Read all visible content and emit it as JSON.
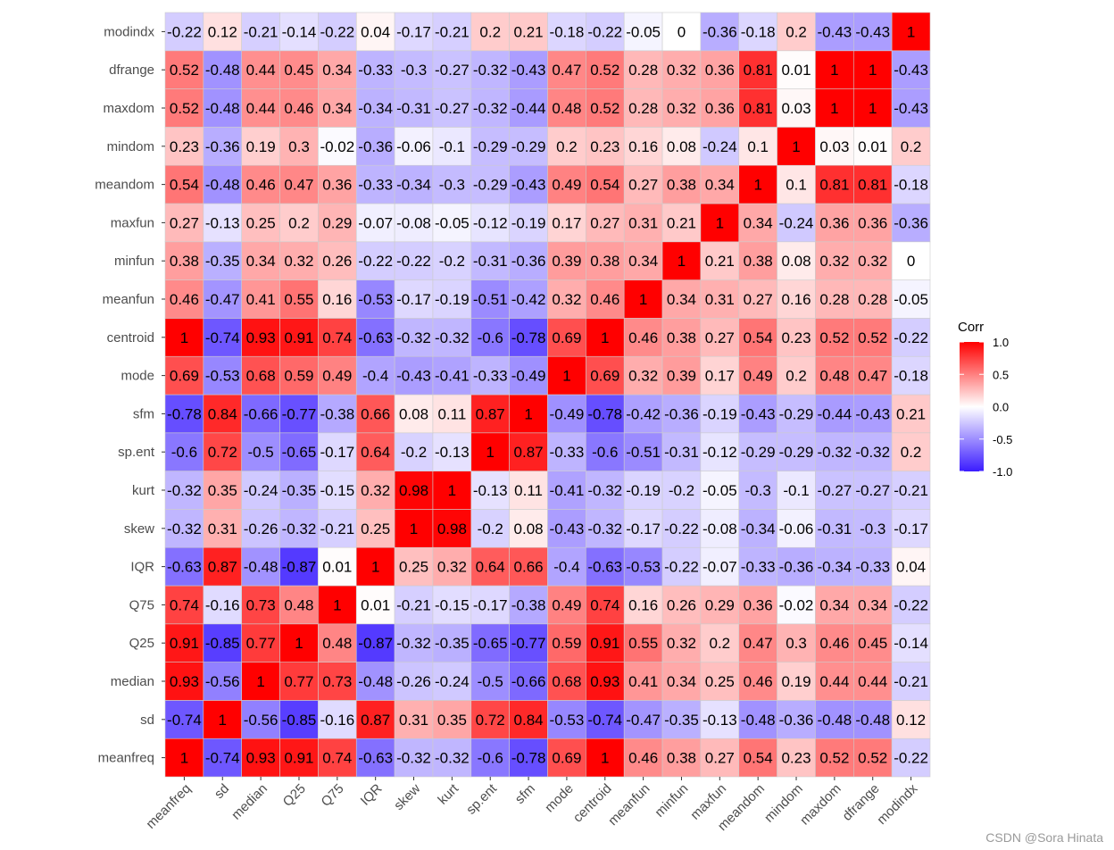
{
  "chart_data": {
    "type": "heatmap",
    "title": "",
    "xlabel": "",
    "ylabel": "",
    "variables": [
      "meanfreq",
      "sd",
      "median",
      "Q25",
      "Q75",
      "IQR",
      "skew",
      "kurt",
      "sp.ent",
      "sfm",
      "mode",
      "centroid",
      "meanfun",
      "minfun",
      "maxfun",
      "meandom",
      "mindom",
      "maxdom",
      "dfrange",
      "modindx"
    ],
    "matrix": [
      [
        1,
        -0.74,
        0.93,
        0.91,
        0.74,
        -0.63,
        -0.32,
        -0.32,
        -0.6,
        -0.78,
        0.69,
        1,
        0.46,
        0.38,
        0.27,
        0.54,
        0.23,
        0.52,
        0.52,
        -0.22
      ],
      [
        -0.74,
        1,
        -0.56,
        -0.85,
        -0.16,
        0.87,
        0.31,
        0.35,
        0.72,
        0.84,
        -0.53,
        -0.74,
        -0.47,
        -0.35,
        -0.13,
        -0.48,
        -0.36,
        -0.48,
        -0.48,
        0.12
      ],
      [
        0.93,
        -0.56,
        1,
        0.77,
        0.73,
        -0.48,
        -0.26,
        -0.24,
        -0.5,
        -0.66,
        0.68,
        0.93,
        0.41,
        0.34,
        0.25,
        0.46,
        0.19,
        0.44,
        0.44,
        -0.21
      ],
      [
        0.91,
        -0.85,
        0.77,
        1,
        0.48,
        -0.87,
        -0.32,
        -0.35,
        -0.65,
        -0.77,
        0.59,
        0.91,
        0.55,
        0.32,
        0.2,
        0.47,
        0.3,
        0.46,
        0.45,
        -0.14
      ],
      [
        0.74,
        -0.16,
        0.73,
        0.48,
        1,
        0.01,
        -0.21,
        -0.15,
        -0.17,
        -0.38,
        0.49,
        0.74,
        0.16,
        0.26,
        0.29,
        0.36,
        -0.02,
        0.34,
        0.34,
        -0.22
      ],
      [
        -0.63,
        0.87,
        -0.48,
        -0.87,
        0.01,
        1,
        0.25,
        0.32,
        0.64,
        0.66,
        -0.4,
        -0.63,
        -0.53,
        -0.22,
        -0.07,
        -0.33,
        -0.36,
        -0.34,
        -0.33,
        0.04
      ],
      [
        -0.32,
        0.31,
        -0.26,
        -0.32,
        -0.21,
        0.25,
        1,
        0.98,
        -0.2,
        0.08,
        -0.43,
        -0.32,
        -0.17,
        -0.22,
        -0.08,
        -0.34,
        -0.06,
        -0.31,
        -0.3,
        -0.17
      ],
      [
        -0.32,
        0.35,
        -0.24,
        -0.35,
        -0.15,
        0.32,
        0.98,
        1,
        -0.13,
        0.11,
        -0.41,
        -0.32,
        -0.19,
        -0.2,
        -0.05,
        -0.3,
        -0.1,
        -0.27,
        -0.27,
        -0.21
      ],
      [
        -0.6,
        0.72,
        -0.5,
        -0.65,
        -0.17,
        0.64,
        -0.2,
        -0.13,
        1,
        0.87,
        -0.33,
        -0.6,
        -0.51,
        -0.31,
        -0.12,
        -0.29,
        -0.29,
        -0.32,
        -0.32,
        0.2
      ],
      [
        -0.78,
        0.84,
        -0.66,
        -0.77,
        -0.38,
        0.66,
        0.08,
        0.11,
        0.87,
        1,
        -0.49,
        -0.78,
        -0.42,
        -0.36,
        -0.19,
        -0.43,
        -0.29,
        -0.44,
        -0.43,
        0.21
      ],
      [
        0.69,
        -0.53,
        0.68,
        0.59,
        0.49,
        -0.4,
        -0.43,
        -0.41,
        -0.33,
        -0.49,
        1,
        0.69,
        0.32,
        0.39,
        0.17,
        0.49,
        0.2,
        0.48,
        0.47,
        -0.18
      ],
      [
        1,
        -0.74,
        0.93,
        0.91,
        0.74,
        -0.63,
        -0.32,
        -0.32,
        -0.6,
        -0.78,
        0.69,
        1,
        0.46,
        0.38,
        0.27,
        0.54,
        0.23,
        0.52,
        0.52,
        -0.22
      ],
      [
        0.46,
        -0.47,
        0.41,
        0.55,
        0.16,
        -0.53,
        -0.17,
        -0.19,
        -0.51,
        -0.42,
        0.32,
        0.46,
        1,
        0.34,
        0.31,
        0.27,
        0.16,
        0.28,
        0.28,
        -0.05
      ],
      [
        0.38,
        -0.35,
        0.34,
        0.32,
        0.26,
        -0.22,
        -0.22,
        -0.2,
        -0.31,
        -0.36,
        0.39,
        0.38,
        0.34,
        1,
        0.21,
        0.38,
        0.08,
        0.32,
        0.32,
        0
      ],
      [
        0.27,
        -0.13,
        0.25,
        0.2,
        0.29,
        -0.07,
        -0.08,
        -0.05,
        -0.12,
        -0.19,
        0.17,
        0.27,
        0.31,
        0.21,
        1,
        0.34,
        -0.24,
        0.36,
        0.36,
        -0.36
      ],
      [
        0.54,
        -0.48,
        0.46,
        0.47,
        0.36,
        -0.33,
        -0.34,
        -0.3,
        -0.29,
        -0.43,
        0.49,
        0.54,
        0.27,
        0.38,
        0.34,
        1,
        0.1,
        0.81,
        0.81,
        -0.18
      ],
      [
        0.23,
        -0.36,
        0.19,
        0.3,
        -0.02,
        -0.36,
        -0.06,
        -0.1,
        -0.29,
        -0.29,
        0.2,
        0.23,
        0.16,
        0.08,
        -0.24,
        0.1,
        1,
        0.03,
        0.01,
        0.2
      ],
      [
        0.52,
        -0.48,
        0.44,
        0.46,
        0.34,
        -0.34,
        -0.31,
        -0.27,
        -0.32,
        -0.44,
        0.48,
        0.52,
        0.28,
        0.32,
        0.36,
        0.81,
        0.03,
        1,
        1,
        -0.43
      ],
      [
        0.52,
        -0.48,
        0.44,
        0.45,
        0.34,
        -0.33,
        -0.3,
        -0.27,
        -0.32,
        -0.43,
        0.47,
        0.52,
        0.28,
        0.32,
        0.36,
        0.81,
        0.01,
        1,
        1,
        -0.43
      ],
      [
        -0.22,
        0.12,
        -0.21,
        -0.14,
        -0.22,
        0.04,
        -0.17,
        -0.21,
        0.2,
        0.21,
        -0.18,
        -0.22,
        -0.05,
        0,
        -0.36,
        -0.18,
        0.2,
        -0.43,
        -0.43,
        1
      ]
    ],
    "legend": {
      "title": "Corr",
      "ticks": [
        1.0,
        0.5,
        0.0,
        -0.5,
        -1.0
      ],
      "tick_labels": [
        "1.0",
        "0.5",
        "0.0",
        "-0.5",
        "-1.0"
      ],
      "range": [
        -1,
        1
      ],
      "placement": "right"
    },
    "colors": {
      "low": "#3b1cff",
      "mid": "#ffffff",
      "high": "#ff0000",
      "border": "#cccccc"
    },
    "grid": false
  },
  "watermark": "CSDN @Sora Hinata"
}
